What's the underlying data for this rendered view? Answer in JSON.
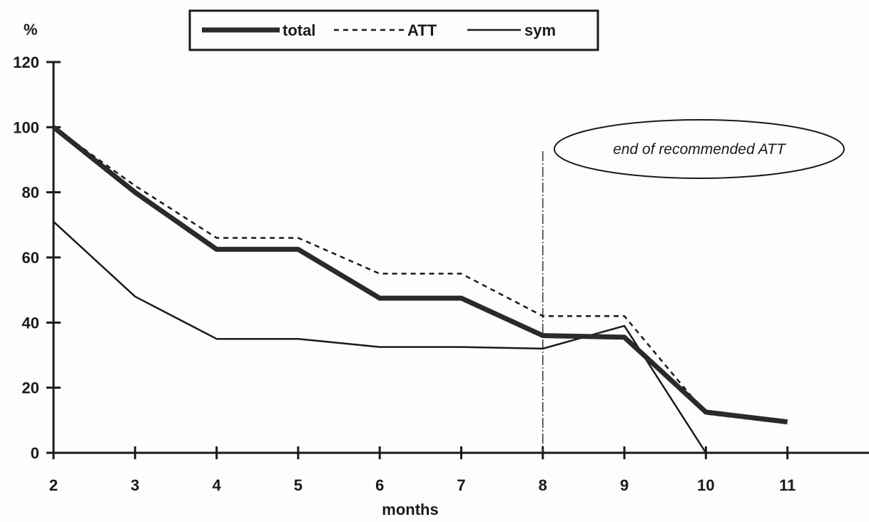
{
  "chart_data": {
    "type": "line",
    "title": "",
    "xlabel": "months",
    "ylabel": "%",
    "x": [
      2,
      3,
      4,
      5,
      6,
      7,
      8,
      9,
      10,
      11
    ],
    "xlim": [
      2,
      12
    ],
    "ylim": [
      0,
      120
    ],
    "yticks": [
      0,
      20,
      40,
      60,
      80,
      100,
      120
    ],
    "xticks": [
      2,
      3,
      4,
      5,
      6,
      7,
      8,
      9,
      10,
      11
    ],
    "grid": false,
    "legend_position": "top",
    "series": [
      {
        "name": "total",
        "style": "thick",
        "color": "#2a2a2a",
        "values": [
          100,
          80,
          62.5,
          62.5,
          47.5,
          47.5,
          36,
          35.5,
          12.5,
          9.5
        ]
      },
      {
        "name": "ATT",
        "style": "dashed",
        "color": "#1a1a1a",
        "values": [
          100,
          82,
          66,
          66,
          55,
          55,
          42,
          42,
          12,
          9
        ]
      },
      {
        "name": "sym",
        "style": "thin",
        "color": "#1a1a1a",
        "values": [
          71,
          48,
          35,
          35,
          32.5,
          32.5,
          32,
          39,
          0,
          null
        ]
      }
    ],
    "annotation": {
      "text": "end of recommended ATT",
      "x": 8
    }
  }
}
